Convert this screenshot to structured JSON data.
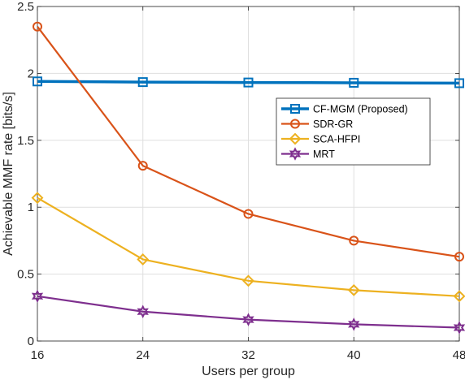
{
  "chart_data": {
    "type": "line",
    "xlabel": "Users per group",
    "ylabel": "Achievable MMF rate [bits/s]",
    "x": [
      16,
      24,
      32,
      40,
      48
    ],
    "xticks": [
      "16",
      "24",
      "32",
      "40",
      "48"
    ],
    "xlim": [
      16,
      48
    ],
    "yticks": [
      "0",
      "0.5",
      "1",
      "1.5",
      "2",
      "2.5"
    ],
    "ylim": [
      0,
      2.5
    ],
    "grid": true,
    "legend_position": "center-right",
    "series": [
      {
        "name": "CF-MGM (Proposed)",
        "values": [
          1.94,
          1.935,
          1.932,
          1.93,
          1.927
        ],
        "color": "#0072BD",
        "marker": "square",
        "width": 3.5
      },
      {
        "name": "SDR-GR",
        "values": [
          2.35,
          1.31,
          0.95,
          0.75,
          0.63
        ],
        "color": "#D95319",
        "marker": "circle",
        "width": 2.2
      },
      {
        "name": "SCA-HFPI",
        "values": [
          1.07,
          0.61,
          0.45,
          0.38,
          0.335
        ],
        "color": "#EDB120",
        "marker": "diamond",
        "width": 2.2
      },
      {
        "name": "MRT",
        "values": [
          0.335,
          0.22,
          0.16,
          0.125,
          0.1
        ],
        "color": "#7E2F8E",
        "marker": "hexagram",
        "width": 2.2
      }
    ]
  }
}
